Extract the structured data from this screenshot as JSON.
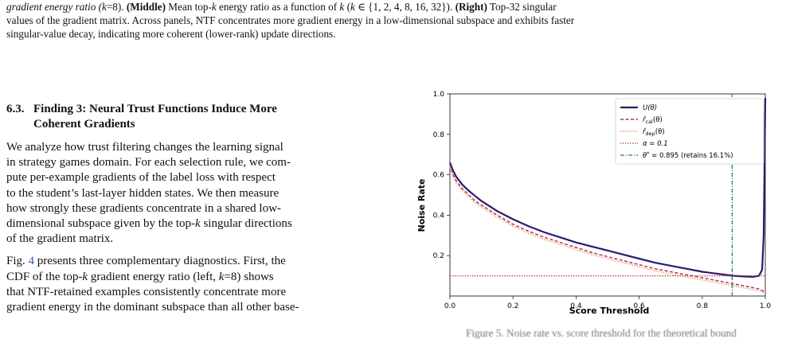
{
  "caption_top": {
    "line1": {
      "a": "gradient energy ratio (",
      "k": "k",
      "b": "=8). ",
      "middle_label": "(Middle)",
      "c": " Mean top-",
      "k2": "k",
      "d": " energy ratio as a function of ",
      "k3": "k",
      "e": " (",
      "k4": "k",
      "f": " ∈ {1, 2, 4, 8, 16, 32}). ",
      "right_label": "(Right)",
      "g": " Top-32 singular"
    },
    "line2": "values of the gradient matrix. Across panels, NTF concentrates more gradient energy in a low-dimensional subspace and exhibits faster",
    "line3": "singular-value decay, indicating more coherent (lower-rank) update directions."
  },
  "section": {
    "number": "6.3.",
    "title_line1": "Finding 3: Neural Trust Functions Induce More",
    "title_line2": "Coherent Gradients"
  },
  "para1": {
    "l1": "We analyze how trust filtering changes the learning signal",
    "l2": "in strategy games domain. For each selection rule, we com-",
    "l3": "pute per-example gradients of the label loss with respect",
    "l4": "to the student’s last-layer hidden states. We then measure",
    "l5": "how strongly these gradients concentrate in a shared low-",
    "l6a": "dimensional subspace given by the top-",
    "l6k": "k",
    "l6b": " singular directions",
    "l7": "of the gradient matrix."
  },
  "para2": {
    "l1a": "Fig. ",
    "l1ref": "4",
    "l1b": " presents three complementary diagnostics. First, the",
    "l2a": "CDF of the top-",
    "l2k": "k",
    "l2b": " gradient energy ratio (left, ",
    "l2k2": "k",
    "l2c": "=8) shows",
    "l3": "that NTF-retained examples consistently concentrate more",
    "l4": "gradient energy in the dominant subspace than all other base-"
  },
  "bottom_caption": "Figure 5. Noise rate vs. score threshold for the theoretical bound",
  "chart_data": {
    "type": "line",
    "xlabel": "Score Threshold",
    "ylabel": "Noise Rate",
    "xlim": [
      0.0,
      1.0
    ],
    "ylim": [
      0.0,
      1.0
    ],
    "xticks": [
      "0.0",
      "0.2",
      "0.4",
      "0.6",
      "0.8",
      "1.0"
    ],
    "yticks": [
      "0.2",
      "0.4",
      "0.6",
      "0.8",
      "1.0"
    ],
    "grid": false,
    "legend_position": "top-right",
    "series": [
      {
        "name": "U(θ)",
        "color": "#2b1a6b",
        "style": "solid",
        "x": [
          0.0,
          0.01,
          0.02,
          0.04,
          0.06,
          0.08,
          0.1,
          0.15,
          0.2,
          0.25,
          0.3,
          0.35,
          0.4,
          0.45,
          0.5,
          0.55,
          0.6,
          0.65,
          0.7,
          0.75,
          0.8,
          0.85,
          0.9,
          0.93,
          0.96,
          0.98,
          0.99,
          0.995,
          1.0
        ],
        "y": [
          0.66,
          0.62,
          0.59,
          0.55,
          0.52,
          0.495,
          0.47,
          0.42,
          0.38,
          0.345,
          0.315,
          0.29,
          0.265,
          0.245,
          0.225,
          0.205,
          0.185,
          0.165,
          0.15,
          0.135,
          0.12,
          0.11,
          0.1,
          0.097,
          0.095,
          0.1,
          0.13,
          0.3,
          0.98
        ]
      },
      {
        "name": "r̂cal(θ)",
        "color": "#b0306a",
        "style": "dashed",
        "x": [
          0.0,
          0.01,
          0.02,
          0.04,
          0.06,
          0.08,
          0.1,
          0.15,
          0.2,
          0.25,
          0.3,
          0.35,
          0.4,
          0.45,
          0.5,
          0.55,
          0.6,
          0.65,
          0.7,
          0.75,
          0.8,
          0.85,
          0.9,
          0.95,
          0.98,
          1.0
        ],
        "y": [
          0.65,
          0.6,
          0.57,
          0.53,
          0.5,
          0.47,
          0.45,
          0.4,
          0.355,
          0.32,
          0.29,
          0.265,
          0.24,
          0.215,
          0.195,
          0.175,
          0.155,
          0.135,
          0.12,
          0.105,
          0.09,
          0.075,
          0.06,
          0.045,
          0.035,
          0.02
        ]
      },
      {
        "name": "r̂dep(θ)",
        "color": "#f08a4b",
        "style": "dotted",
        "x": [
          0.0,
          0.01,
          0.02,
          0.04,
          0.06,
          0.08,
          0.1,
          0.15,
          0.2,
          0.25,
          0.3,
          0.35,
          0.4,
          0.45,
          0.5,
          0.55,
          0.6,
          0.65,
          0.7,
          0.75,
          0.8,
          0.85,
          0.9,
          0.95,
          0.98,
          1.0
        ],
        "y": [
          0.64,
          0.59,
          0.56,
          0.52,
          0.49,
          0.46,
          0.44,
          0.39,
          0.345,
          0.31,
          0.28,
          0.255,
          0.23,
          0.205,
          0.185,
          0.165,
          0.145,
          0.125,
          0.11,
          0.095,
          0.08,
          0.065,
          0.05,
          0.035,
          0.025,
          0.015
        ]
      },
      {
        "name": "α = 0.1",
        "color": "#a5282a",
        "style": "dotted",
        "x": [
          0.0,
          1.0
        ],
        "y": [
          0.1,
          0.1
        ]
      },
      {
        "name": "θ* = 0.895 (retains 16.1%)",
        "color": "#1d8a4f",
        "style": "dashdot",
        "x": [
          0.895,
          0.895
        ],
        "y": [
          0.0,
          1.0
        ]
      }
    ],
    "legend": {
      "u": {
        "base": "U(θ)"
      },
      "rcal": {
        "pre": "r̂",
        "sub": "cal",
        "post": "(θ)"
      },
      "rdep": {
        "pre": "r̂",
        "sub": "dep",
        "post": "(θ)"
      },
      "alpha": {
        "base": "α = 0.1"
      },
      "theta": {
        "pre": "θ",
        "sup": "*",
        "post": " = 0.895 (retains 16.1%)"
      }
    }
  }
}
